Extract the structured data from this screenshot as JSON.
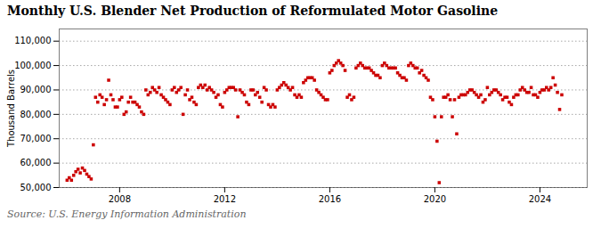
{
  "chart_data": {
    "type": "scatter",
    "title": "Monthly U.S. Blender Net Production of Reformulated Motor Gasoline",
    "ylabel": "Thousand Barrels",
    "source": "Source: U.S. Energy Information Administration",
    "color": "#cc0000",
    "marker": "square",
    "grid": true,
    "xlim": [
      2005.7,
      2025.8
    ],
    "xticks": [
      2008,
      2012,
      2016,
      2020,
      2024
    ],
    "ylim": [
      50000,
      115000
    ],
    "yticks": [
      {
        "value": 50000,
        "label": "50,000"
      },
      {
        "value": 60000,
        "label": "60,000"
      },
      {
        "value": 70000,
        "label": "70,000"
      },
      {
        "value": 80000,
        "label": "80,000"
      },
      {
        "value": 90000,
        "label": "90,000"
      },
      {
        "value": 100000,
        "label": "100,000"
      },
      {
        "value": 110000,
        "label": "110,000"
      }
    ],
    "x": [
      2006.0,
      2006.083,
      2006.167,
      2006.25,
      2006.333,
      2006.417,
      2006.5,
      2006.583,
      2006.667,
      2006.75,
      2006.833,
      2006.917,
      2007.0,
      2007.083,
      2007.167,
      2007.25,
      2007.333,
      2007.417,
      2007.5,
      2007.583,
      2007.667,
      2007.75,
      2007.833,
      2007.917,
      2008.0,
      2008.083,
      2008.167,
      2008.25,
      2008.333,
      2008.417,
      2008.5,
      2008.583,
      2008.667,
      2008.75,
      2008.833,
      2008.917,
      2009.0,
      2009.083,
      2009.167,
      2009.25,
      2009.333,
      2009.417,
      2009.5,
      2009.583,
      2009.667,
      2009.75,
      2009.833,
      2009.917,
      2010.0,
      2010.083,
      2010.167,
      2010.25,
      2010.333,
      2010.417,
      2010.5,
      2010.583,
      2010.667,
      2010.75,
      2010.833,
      2010.917,
      2011.0,
      2011.083,
      2011.167,
      2011.25,
      2011.333,
      2011.417,
      2011.5,
      2011.583,
      2011.667,
      2011.75,
      2011.833,
      2011.917,
      2012.0,
      2012.083,
      2012.167,
      2012.25,
      2012.333,
      2012.417,
      2012.5,
      2012.583,
      2012.667,
      2012.75,
      2012.833,
      2012.917,
      2013.0,
      2013.083,
      2013.167,
      2013.25,
      2013.333,
      2013.417,
      2013.5,
      2013.583,
      2013.667,
      2013.75,
      2013.833,
      2013.917,
      2014.0,
      2014.083,
      2014.167,
      2014.25,
      2014.333,
      2014.417,
      2014.5,
      2014.583,
      2014.667,
      2014.75,
      2014.833,
      2014.917,
      2015.0,
      2015.083,
      2015.167,
      2015.25,
      2015.333,
      2015.417,
      2015.5,
      2015.583,
      2015.667,
      2015.75,
      2015.833,
      2015.917,
      2016.0,
      2016.083,
      2016.167,
      2016.25,
      2016.333,
      2016.417,
      2016.5,
      2016.583,
      2016.667,
      2016.75,
      2016.833,
      2016.917,
      2017.0,
      2017.083,
      2017.167,
      2017.25,
      2017.333,
      2017.417,
      2017.5,
      2017.583,
      2017.667,
      2017.75,
      2017.833,
      2017.917,
      2018.0,
      2018.083,
      2018.167,
      2018.25,
      2018.333,
      2018.417,
      2018.5,
      2018.583,
      2018.667,
      2018.75,
      2018.833,
      2018.917,
      2019.0,
      2019.083,
      2019.167,
      2019.25,
      2019.333,
      2019.417,
      2019.5,
      2019.583,
      2019.667,
      2019.75,
      2019.833,
      2019.917,
      2020.0,
      2020.083,
      2020.167,
      2020.25,
      2020.333,
      2020.417,
      2020.5,
      2020.583,
      2020.667,
      2020.75,
      2020.833,
      2020.917,
      2021.0,
      2021.083,
      2021.167,
      2021.25,
      2021.333,
      2021.417,
      2021.5,
      2021.583,
      2021.667,
      2021.75,
      2021.833,
      2021.917,
      2022.0,
      2022.083,
      2022.167,
      2022.25,
      2022.333,
      2022.417,
      2022.5,
      2022.583,
      2022.667,
      2022.75,
      2022.833,
      2022.917,
      2023.0,
      2023.083,
      2023.167,
      2023.25,
      2023.333,
      2023.417,
      2023.5,
      2023.583,
      2023.667,
      2023.75,
      2023.833,
      2023.917,
      2024.0,
      2024.083,
      2024.167,
      2024.25,
      2024.333,
      2024.417,
      2024.5,
      2024.583,
      2024.667,
      2024.75,
      2024.833
    ],
    "values": [
      53000,
      54000,
      53000,
      55000,
      56500,
      57500,
      56000,
      58000,
      57000,
      55500,
      54500,
      53500,
      67500,
      87000,
      85000,
      88000,
      87000,
      84000,
      86000,
      94000,
      88000,
      86000,
      83000,
      83000,
      86000,
      87000,
      80000,
      81000,
      85000,
      87000,
      85000,
      85000,
      84000,
      83000,
      81000,
      80000,
      90000,
      88000,
      89000,
      91000,
      90000,
      89000,
      91000,
      88000,
      87000,
      86000,
      85000,
      84000,
      90000,
      91000,
      89000,
      90000,
      91000,
      80000,
      88000,
      90000,
      86000,
      87000,
      85000,
      84000,
      91000,
      92000,
      91000,
      92000,
      90000,
      91000,
      90000,
      89000,
      87000,
      88000,
      84000,
      83000,
      89000,
      90000,
      91000,
      91000,
      91000,
      90000,
      79000,
      90000,
      89000,
      88000,
      85000,
      84000,
      90000,
      90000,
      88000,
      89000,
      87000,
      85000,
      91000,
      90000,
      84000,
      83000,
      84000,
      83000,
      90000,
      91000,
      92000,
      93000,
      92000,
      91000,
      90000,
      91000,
      88000,
      87000,
      88000,
      87000,
      93000,
      94000,
      95000,
      95000,
      95000,
      94000,
      90000,
      89000,
      88000,
      87000,
      86000,
      86000,
      97000,
      98000,
      100000,
      101000,
      102000,
      101000,
      100000,
      98000,
      87000,
      88000,
      86000,
      87000,
      99000,
      100000,
      101000,
      100000,
      99000,
      99000,
      99000,
      98000,
      97000,
      96000,
      96000,
      95000,
      100000,
      101000,
      100000,
      99000,
      99000,
      99000,
      99000,
      97000,
      96000,
      95000,
      95000,
      94000,
      100000,
      101000,
      100000,
      99000,
      99000,
      97000,
      98000,
      96000,
      95000,
      94000,
      87000,
      86000,
      79000,
      69000,
      52000,
      79000,
      87000,
      87000,
      88000,
      86000,
      79000,
      86000,
      72000,
      87000,
      88000,
      88000,
      88000,
      89000,
      90000,
      90000,
      89000,
      88000,
      87000,
      88000,
      85000,
      86000,
      91000,
      88000,
      89000,
      90000,
      90000,
      89000,
      88000,
      86000,
      87000,
      87000,
      85000,
      84000,
      87000,
      88000,
      88000,
      90000,
      91000,
      90000,
      89000,
      89000,
      91000,
      88000,
      88000,
      87000,
      89000,
      90000,
      90000,
      91000,
      90000,
      91000,
      95000,
      92000,
      89000,
      82000,
      88000
    ]
  }
}
